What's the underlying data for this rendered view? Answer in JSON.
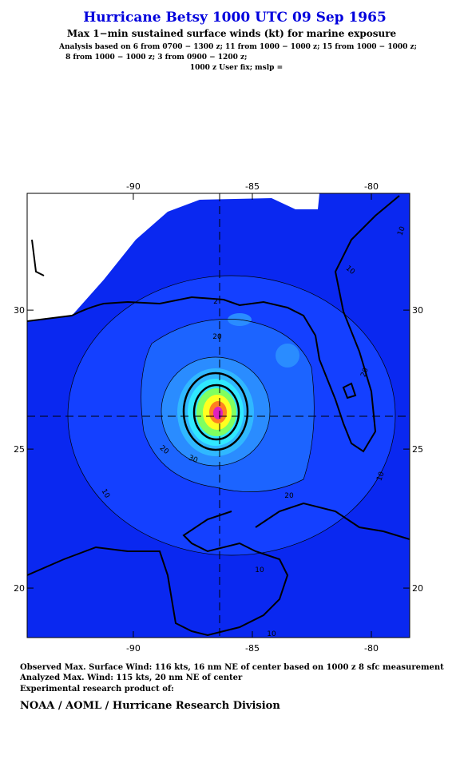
{
  "header": {
    "title": "Hurricane Betsy 1000 UTC 09 Sep 1965",
    "subtitle": "Max 1−min sustained surface winds (kt) for marine exposure",
    "analysis_lines": [
      "Analysis based on  6 from 0700 − 1300 z;  11 from 1000 − 1000 z;  15 from 1000 − 1000 z;",
      "8 from 1000 − 1000 z;  3 from 0900 − 1200 z;",
      "1000 z User fix; mslp ="
    ]
  },
  "map": {
    "xlim": [
      -94.46,
      -78.39
    ],
    "ylim": [
      18.22,
      34.2
    ],
    "xticks": [
      -90,
      -85,
      -80
    ],
    "yticks": [
      20,
      25,
      30
    ],
    "contour_labels": [
      10,
      10,
      2,
      20,
      20,
      20,
      30,
      20,
      10,
      10,
      10,
      10
    ]
  },
  "footer": {
    "lines": [
      "Observed Max. Surface Wind: 116 kts, 16 nm NE of center based on 1000 z 8 sfc measurement",
      "Analyzed Max. Wind: 115 kts, 20 nm NE of center",
      "Experimental research product of:"
    ],
    "org": "NOAA / AOML / Hurricane Research Division"
  }
}
